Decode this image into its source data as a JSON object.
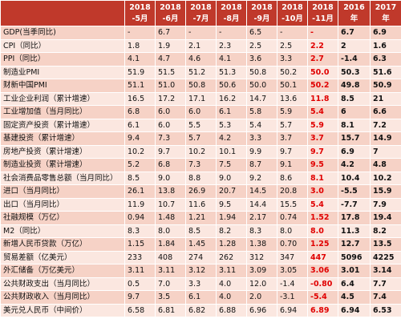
{
  "columns": [
    "2018\n-5月",
    "2018\n-6月",
    "2018\n-7月",
    "2018\n-8月",
    "2018\n-9月",
    "2018\n-10月",
    "2018\n-11月",
    "2016\n年",
    "2017\n年"
  ],
  "rows": [
    {
      "label": "GDP(当季同比)",
      "values": [
        "-",
        "6.7",
        "-",
        "-",
        "6.5",
        "-",
        "-",
        "6.7",
        "6.9"
      ]
    },
    {
      "label": "CPI（同比）",
      "values": [
        "1.8",
        "1.9",
        "2.1",
        "2.3",
        "2.5",
        "2.5",
        "2.2",
        "2",
        "1.6"
      ]
    },
    {
      "label": "PPI（同比）",
      "values": [
        "4.1",
        "4.7",
        "4.6",
        "4.1",
        "3.6",
        "3.3",
        "2.7",
        "-1.4",
        "6.3"
      ]
    },
    {
      "label": "制造业PMI",
      "values": [
        "51.9",
        "51.5",
        "51.2",
        "51.3",
        "50.8",
        "50.2",
        "50.0",
        "50.3",
        "51.6"
      ]
    },
    {
      "label": "财新中国PMI",
      "values": [
        "51.1",
        "51.0",
        "50.8",
        "50.6",
        "50.0",
        "50.1",
        "50.2",
        "49.8",
        "50.9"
      ]
    },
    {
      "label": "工业企业利润（累计增速）",
      "values": [
        "16.5",
        "17.2",
        "17.1",
        "16.2",
        "14.7",
        "13.6",
        "11.8",
        "8.5",
        "21"
      ]
    },
    {
      "label": "工业增加值（当月同比）",
      "values": [
        "6.8",
        "6.0",
        "6.0",
        "6.1",
        "5.8",
        "5.9",
        "5.4",
        "6",
        "6.6"
      ]
    },
    {
      "label": "固定资产投资（累计增速）",
      "values": [
        "6.1",
        "6.0",
        "5.5",
        "5.3",
        "5.4",
        "5.7",
        "5.9",
        "8.1",
        "7.2"
      ]
    },
    {
      "label": "基建投资（累计增速）",
      "values": [
        "9.4",
        "7.3",
        "5.7",
        "4.2",
        "3.3",
        "3.7",
        "3.7",
        "15.7",
        "14.9"
      ]
    },
    {
      "label": "房地产投资（累计增速）",
      "values": [
        "10.2",
        "9.7",
        "10.2",
        "10.1",
        "9.9",
        "9.7",
        "9.7",
        "6.9",
        "7"
      ]
    },
    {
      "label": "制造业投资（累计增速）",
      "values": [
        "5.2",
        "6.8",
        "7.3",
        "7.5",
        "8.7",
        "9.1",
        "9.5",
        "4.2",
        "4.8"
      ]
    },
    {
      "label": "社会消费品零售总额（当月同比）",
      "values": [
        "8.5",
        "9.0",
        "8.8",
        "9.0",
        "9.2",
        "8.6",
        "8.1",
        "10.4",
        "10.2"
      ]
    },
    {
      "label": "进口（当月同比）",
      "values": [
        "26.1",
        "13.8",
        "26.9",
        "20.7",
        "14.5",
        "20.8",
        "3.0",
        "-5.5",
        "15.9"
      ]
    },
    {
      "label": "出口（当月同比）",
      "values": [
        "11.9",
        "10.7",
        "11.6",
        "9.5",
        "14.4",
        "15.5",
        "5.4",
        "-7.7",
        "7.9"
      ]
    },
    {
      "label": "社融规模（万亿）",
      "values": [
        "0.94",
        "1.48",
        "1.21",
        "1.94",
        "2.17",
        "0.74",
        "1.52",
        "17.8",
        "19.4"
      ]
    },
    {
      "label": "M2（同比）",
      "values": [
        "8.3",
        "8.0",
        "8.5",
        "8.2",
        "8.3",
        "8.0",
        "8.0",
        "11.3",
        "8.2"
      ]
    },
    {
      "label": "新增人民币贷款（万亿）",
      "values": [
        "1.15",
        "1.84",
        "1.45",
        "1.28",
        "1.38",
        "0.70",
        "1.25",
        "12.7",
        "13.5"
      ]
    },
    {
      "label": "贸易差额（亿美元）",
      "values": [
        "233",
        "408",
        "274",
        "262",
        "312",
        "347",
        "447",
        "5096",
        "4225"
      ]
    },
    {
      "label": "外汇储备（万亿美元）",
      "values": [
        "3.11",
        "3.11",
        "3.12",
        "3.11",
        "3.09",
        "3.05",
        "3.06",
        "3.01",
        "3.14"
      ]
    },
    {
      "label": "公共财政支出（当月同比）",
      "values": [
        "0.5",
        "7.0",
        "3.3",
        "4.0",
        "12.0",
        "-1.4",
        "-0.80",
        "6.4",
        "7.7"
      ]
    },
    {
      "label": "公共财政收入（当月同比）",
      "values": [
        "9.7",
        "3.5",
        "6.1",
        "4.0",
        "2.0",
        "-3.1",
        "-5.4",
        "4.5",
        "7.4"
      ]
    },
    {
      "label": "美元兑人民币（中间价）",
      "values": [
        "6.58",
        "6.81",
        "6.82",
        "6.88",
        "6.96",
        "6.94",
        "6.89",
        "6.94",
        "6.53"
      ]
    }
  ],
  "colors": {
    "header_bg": "#c0392b",
    "row_odd": "#f6d2c6",
    "row_even": "#fbe7e0",
    "highlight_text": "#e00000"
  }
}
